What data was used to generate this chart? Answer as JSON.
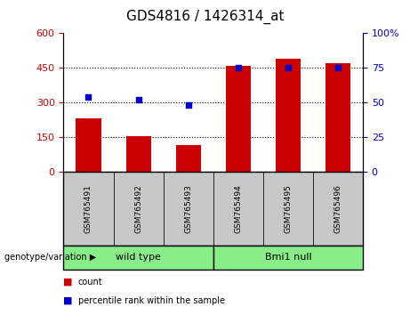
{
  "title": "GDS4816 / 1426314_at",
  "categories": [
    "GSM765491",
    "GSM765492",
    "GSM765493",
    "GSM765494",
    "GSM765495",
    "GSM765496"
  ],
  "counts": [
    230,
    152,
    115,
    460,
    490,
    470
  ],
  "percentile_ranks": [
    54,
    52,
    48,
    75,
    75,
    75
  ],
  "left_ylim": [
    0,
    600
  ],
  "right_ylim": [
    0,
    100
  ],
  "left_yticks": [
    0,
    150,
    300,
    450,
    600
  ],
  "right_yticks": [
    0,
    25,
    50,
    75,
    100
  ],
  "left_ytick_labels": [
    "0",
    "150",
    "300",
    "450",
    "600"
  ],
  "right_ytick_labels": [
    "0",
    "25",
    "50",
    "75",
    "100%"
  ],
  "bar_color": "#cc0000",
  "dot_color": "#0000cc",
  "genotype_label": "genotype/variation",
  "groups": [
    {
      "label": "wild type",
      "color": "#88ee88"
    },
    {
      "label": "Bmi1 null",
      "color": "#88ee88"
    }
  ],
  "legend_items": [
    {
      "label": "count",
      "color": "#cc0000"
    },
    {
      "label": "percentile rank within the sample",
      "color": "#0000cc"
    }
  ],
  "tick_area_color": "#c8c8c8",
  "n_groups": 6,
  "split_after": 3
}
